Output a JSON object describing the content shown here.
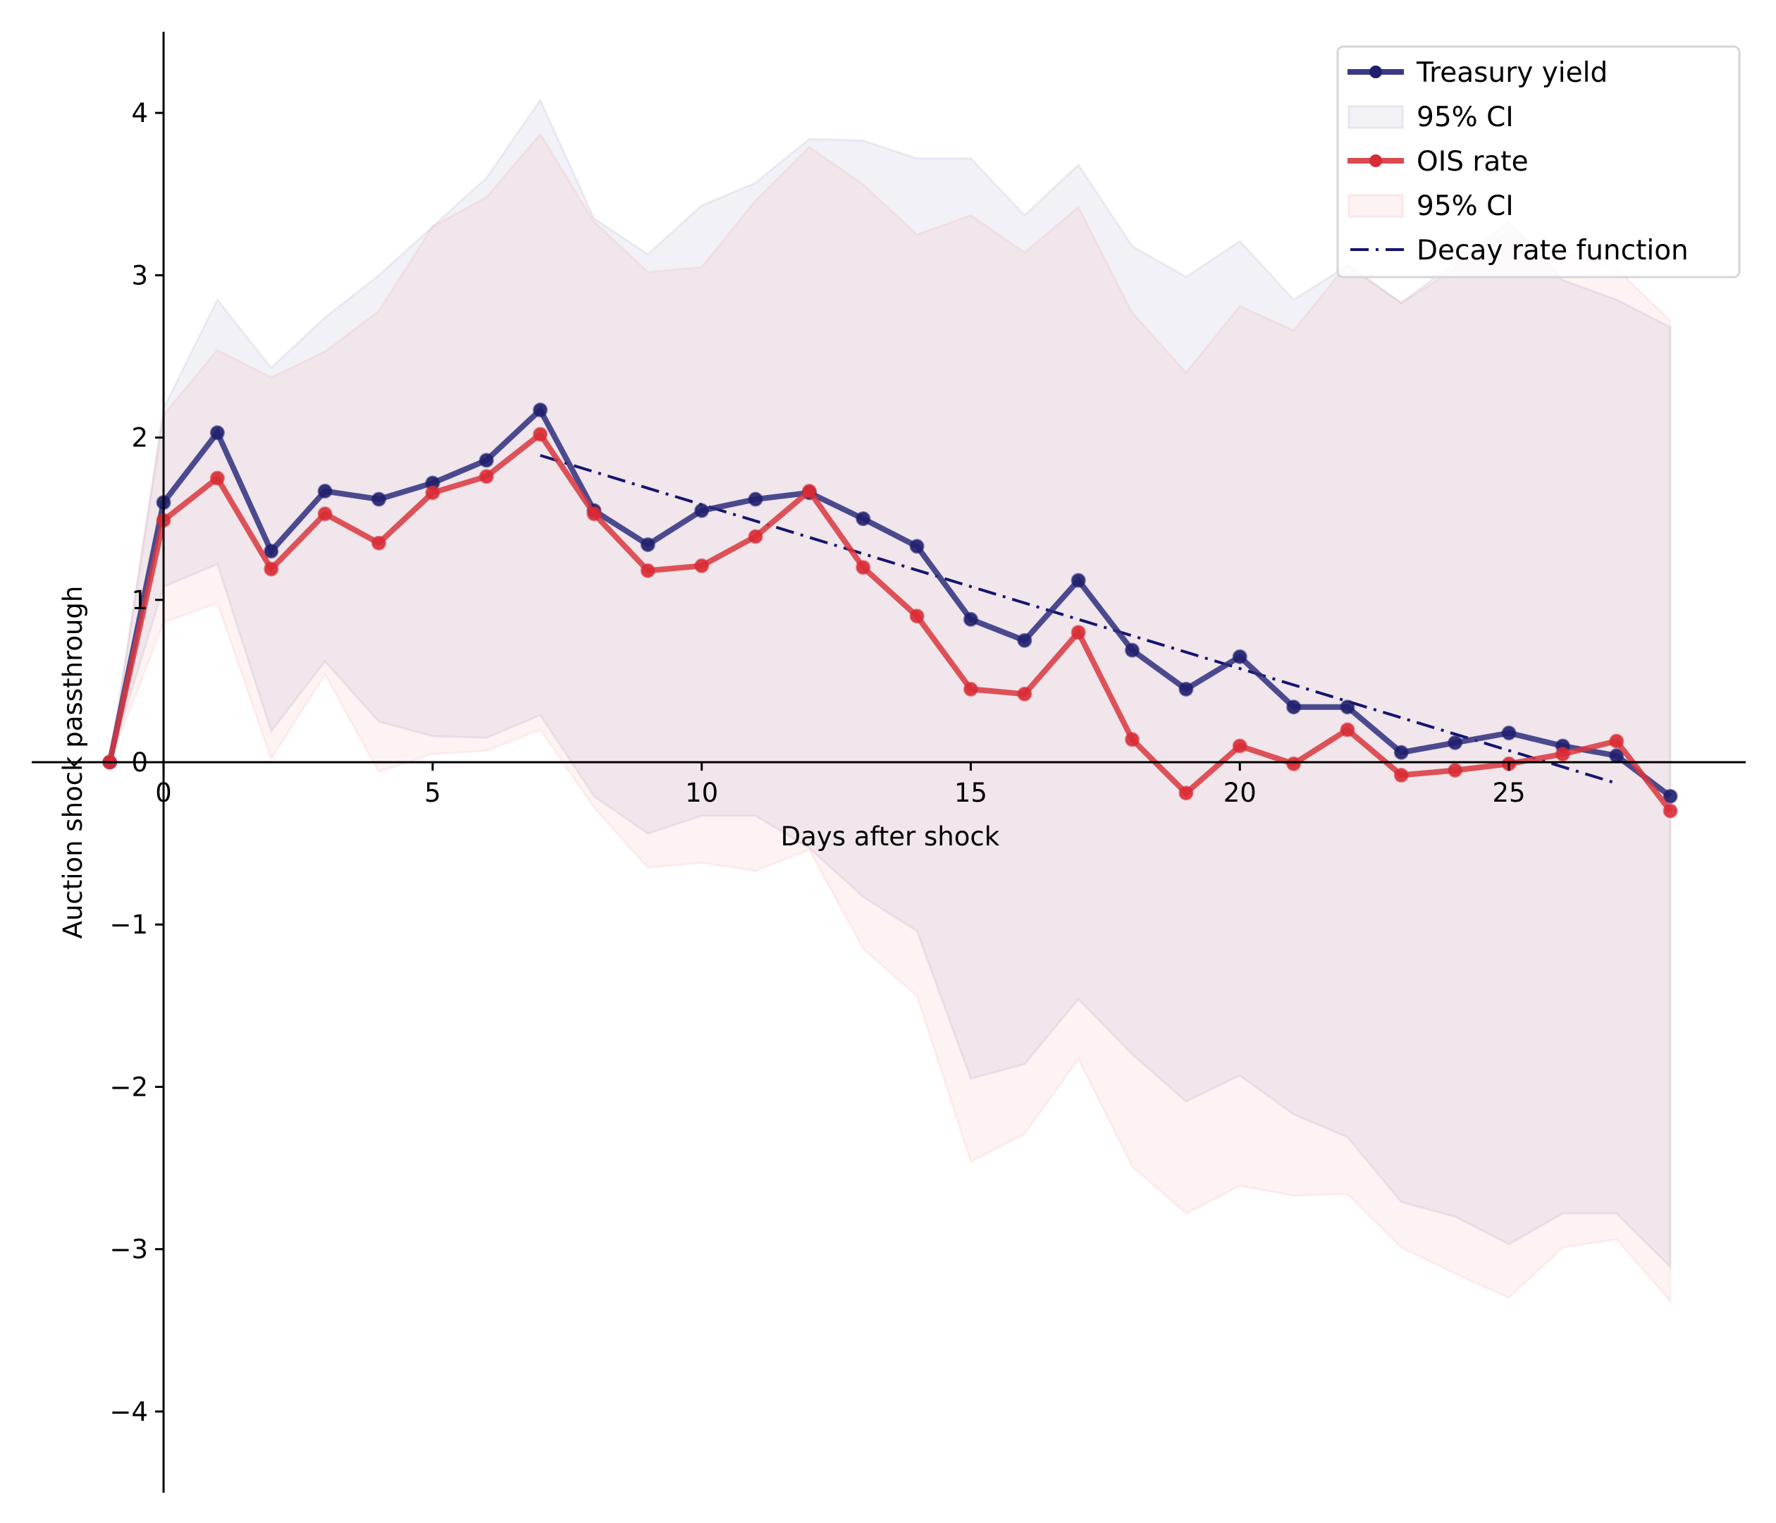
{
  "chart_data": {
    "type": "line",
    "title": "",
    "xlabel": "Days after shock",
    "ylabel": "Auction shock passthrough",
    "xlim": [
      -2.45,
      29.4
    ],
    "ylim": [
      -4.5,
      4.5
    ],
    "grid": false,
    "legend_position": "top-right",
    "x_ticks": [
      0,
      5,
      10,
      15,
      20,
      25
    ],
    "x_tick_labels": [
      "0",
      "5",
      "10",
      "15",
      "20",
      "25"
    ],
    "y_ticks": [
      -4,
      -3,
      -2,
      -1,
      0,
      1,
      2,
      3,
      4
    ],
    "y_tick_labels": [
      "−4",
      "−3",
      "−2",
      "−1",
      "0",
      "1",
      "2",
      "3",
      "4"
    ],
    "x": [
      -1,
      0,
      1,
      2,
      3,
      4,
      5,
      6,
      7,
      8,
      9,
      10,
      11,
      12,
      13,
      14,
      15,
      16,
      17,
      18,
      19,
      20,
      21,
      22,
      23,
      24,
      25,
      26,
      27,
      28
    ],
    "series": [
      {
        "name": "Treasury yield",
        "color": "#2e2e7e",
        "marker_color": "#1f1f6e",
        "values": [
          0,
          1.6,
          2.03,
          1.3,
          1.67,
          1.62,
          1.72,
          1.86,
          2.17,
          1.55,
          1.34,
          1.55,
          1.62,
          1.66,
          1.5,
          1.33,
          0.88,
          0.75,
          1.12,
          0.69,
          0.45,
          0.65,
          0.34,
          0.34,
          0.06,
          0.12,
          0.18,
          0.1,
          0.04,
          -0.21
        ],
        "ci_label": "95% CI",
        "ci_color": "#3a3a8c",
        "ci_lower": [
          0,
          1.08,
          1.22,
          0.19,
          0.62,
          0.25,
          0.16,
          0.15,
          0.29,
          -0.21,
          -0.44,
          -0.33,
          -0.33,
          -0.53,
          -0.83,
          -1.04,
          -1.95,
          -1.86,
          -1.46,
          -1.8,
          -2.09,
          -1.93,
          -2.17,
          -2.31,
          -2.71,
          -2.8,
          -2.97,
          -2.78,
          -2.78,
          -3.11
        ],
        "ci_upper": [
          0,
          2.18,
          2.85,
          2.43,
          2.74,
          3.0,
          3.3,
          3.6,
          4.08,
          3.35,
          3.13,
          3.43,
          3.57,
          3.84,
          3.83,
          3.72,
          3.72,
          3.37,
          3.68,
          3.18,
          2.99,
          3.21,
          2.85,
          3.06,
          2.83,
          3.08,
          3.33,
          2.97,
          2.85,
          2.68
        ]
      },
      {
        "name": "OIS rate",
        "color": "#d9363e",
        "marker_color": "#d92b35",
        "values": [
          0,
          1.49,
          1.75,
          1.19,
          1.53,
          1.35,
          1.66,
          1.76,
          2.02,
          1.53,
          1.18,
          1.21,
          1.39,
          1.67,
          1.2,
          0.9,
          0.45,
          0.42,
          0.8,
          0.14,
          -0.19,
          0.1,
          -0.01,
          0.2,
          -0.08,
          -0.05,
          -0.01,
          0.05,
          0.13,
          -0.3
        ],
        "ci_label": "95% CI",
        "ci_color": "#e8564f",
        "ci_lower": [
          0,
          0.86,
          0.98,
          0.02,
          0.54,
          -0.06,
          0.05,
          0.07,
          0.2,
          -0.28,
          -0.65,
          -0.62,
          -0.67,
          -0.54,
          -1.15,
          -1.44,
          -2.46,
          -2.29,
          -1.83,
          -2.49,
          -2.78,
          -2.61,
          -2.67,
          -2.66,
          -2.99,
          -3.15,
          -3.3,
          -2.99,
          -2.94,
          -3.32
        ],
        "ci_upper": [
          0,
          2.14,
          2.54,
          2.37,
          2.53,
          2.78,
          3.3,
          3.48,
          3.87,
          3.33,
          3.02,
          3.05,
          3.46,
          3.79,
          3.56,
          3.25,
          3.37,
          3.14,
          3.42,
          2.77,
          2.4,
          2.81,
          2.66,
          3.07,
          2.83,
          3.04,
          3.27,
          3.14,
          3.04,
          2.72
        ]
      }
    ],
    "decay_function": {
      "name": "Decay rate function",
      "color": "#14146e",
      "style": "dash-dot",
      "x": [
        7,
        27
      ],
      "y": [
        1.89,
        -0.13
      ]
    }
  },
  "legend": {
    "items": [
      {
        "label": "Treasury yield",
        "kind": "line-marker",
        "color": "#3a3a88",
        "marker": "#1f1f6e"
      },
      {
        "label": "95% CI",
        "kind": "patch",
        "color": "#f2f2f7",
        "edge": "#e6e6f0"
      },
      {
        "label": "OIS rate",
        "kind": "line-marker",
        "color": "#dc4a50",
        "marker": "#d92b35"
      },
      {
        "label": "95% CI",
        "kind": "patch",
        "color": "#fdf3f2",
        "edge": "#fbe6e6"
      },
      {
        "label": "Decay rate function",
        "kind": "dashdot",
        "color": "#14146e"
      }
    ]
  }
}
